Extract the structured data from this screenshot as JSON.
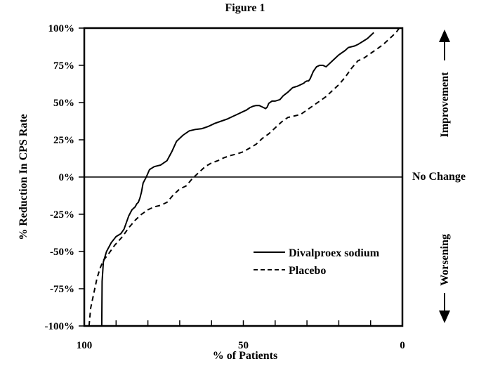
{
  "chart_data": {
    "type": "line",
    "title": "Figure 1",
    "xlabel": "% of Patients",
    "ylabel": "% Reduction In CPS Rate",
    "x_reversed": true,
    "xlim": [
      100,
      0
    ],
    "ylim": [
      -100,
      100
    ],
    "x_tick_labels": [
      "100",
      "50",
      "0"
    ],
    "y_tick_labels": [
      "100%",
      "75%",
      "50%",
      "25%",
      "0%",
      "-25%",
      "-50%",
      "-75%",
      "-100%"
    ],
    "reference_line": {
      "y": 0,
      "label": "No Change"
    },
    "annotations": {
      "upper": "Improvement",
      "lower": "Worsening"
    },
    "legend_position": "lower-right",
    "series": [
      {
        "name": "Divalproex sodium",
        "line_style": "solid",
        "x": [
          94.5,
          94.4,
          94,
          93,
          91.5,
          90,
          88.5,
          87.5,
          86,
          85,
          84,
          83.5,
          83,
          82.5,
          82,
          81.5,
          80.5,
          79.5,
          78,
          76,
          74,
          72.5,
          71,
          69,
          67,
          65,
          63,
          61,
          59,
          57,
          55,
          53.5,
          52,
          50,
          49,
          48,
          47,
          46,
          45,
          44,
          43,
          42.5,
          42,
          41,
          40,
          38.5,
          37.5,
          36,
          34.5,
          33,
          32,
          31,
          30.5,
          30,
          29.5,
          29,
          28,
          27,
          26,
          25,
          24,
          22,
          20,
          18,
          17,
          15,
          14,
          12.5,
          11,
          10,
          9
        ],
        "y": [
          -100,
          -70,
          -57,
          -50,
          -44,
          -40,
          -38,
          -35,
          -26,
          -22,
          -20,
          -18,
          -17,
          -14,
          -10,
          -4,
          0,
          5,
          7,
          8,
          11,
          17,
          24,
          28,
          31,
          32,
          32.5,
          34,
          36,
          37.5,
          39,
          40.5,
          42,
          44,
          45,
          46.5,
          47.5,
          48,
          48,
          47,
          46,
          47,
          49.5,
          51,
          51,
          52,
          54.5,
          57,
          60,
          61,
          62,
          63,
          64,
          64.5,
          64.5,
          66,
          71,
          74,
          75,
          75,
          74,
          78,
          82,
          85,
          87,
          88,
          89,
          91,
          93,
          95,
          97
        ]
      },
      {
        "name": "Placebo",
        "line_style": "dashed",
        "x": [
          98.5,
          98,
          97,
          96,
          95,
          94,
          92.5,
          90.5,
          88,
          86,
          84,
          82,
          80,
          78,
          76,
          74,
          72,
          70,
          68,
          66,
          64,
          62,
          60,
          58,
          56,
          54,
          52,
          50,
          48,
          46,
          44,
          42,
          40,
          38,
          36,
          34,
          32,
          30,
          28,
          26,
          24,
          22,
          20,
          18,
          16,
          14,
          12,
          10,
          8,
          6,
          4,
          2,
          1
        ],
        "y": [
          -100,
          -88,
          -78,
          -68,
          -61,
          -56,
          -52,
          -46,
          -40,
          -34,
          -29,
          -25,
          -22,
          -20,
          -19,
          -17,
          -12,
          -8,
          -6,
          -1,
          3,
          7,
          9.5,
          11,
          13,
          14.5,
          15.5,
          17,
          19.5,
          22,
          26,
          29,
          33,
          37,
          40,
          41,
          42,
          45,
          48,
          51,
          54,
          58,
          62,
          67,
          73,
          78,
          80,
          83,
          86,
          89,
          93,
          97,
          100
        ]
      }
    ]
  }
}
